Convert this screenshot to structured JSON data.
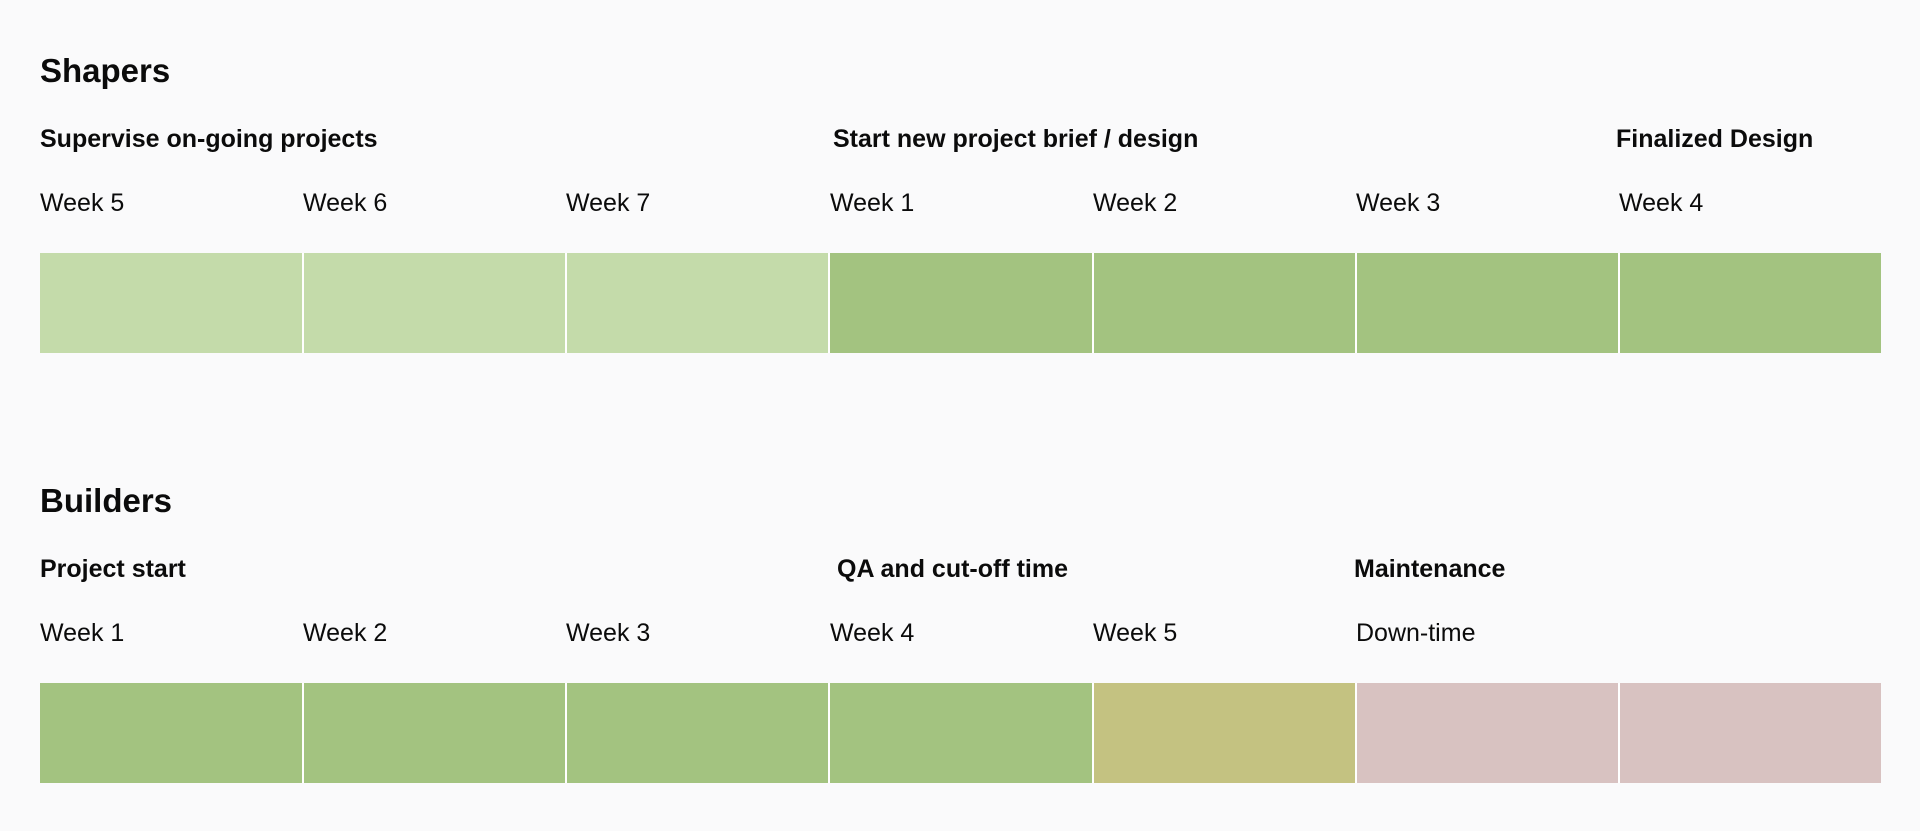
{
  "sections": [
    {
      "title": "Shapers",
      "phases": [
        {
          "label": "Supervise on-going projects"
        },
        {
          "label": "Start new project brief / design"
        },
        {
          "label": "Finalized Design"
        }
      ],
      "weeks": [
        "Week 5",
        "Week 6",
        "Week 7",
        "Week 1",
        "Week 2",
        "Week 3",
        "Week 4"
      ],
      "blocks": [
        "#c4dbaa",
        "#c4dbaa",
        "#c4dbaa",
        "#a3c380",
        "#a3c380",
        "#a3c380",
        "#a3c380"
      ]
    },
    {
      "title": "Builders",
      "phases": [
        {
          "label": "Project start"
        },
        {
          "label": "QA and cut-off time"
        },
        {
          "label": "Maintenance"
        }
      ],
      "weeks": [
        "Week 1",
        "Week 2",
        "Week 3",
        "Week 4",
        "Week 5",
        "Down-time",
        ""
      ],
      "blocks": [
        "#a3c380",
        "#a3c380",
        "#a3c380",
        "#a3c380",
        "#c4c281",
        "#d8c2c1",
        "#d8c2c1"
      ]
    }
  ],
  "colors": {
    "background": "#fafafb",
    "light_green": "#c4dbaa",
    "green": "#a3c380",
    "olive": "#c4c281",
    "pink": "#d8c2c1",
    "separator": "#ffffff"
  }
}
